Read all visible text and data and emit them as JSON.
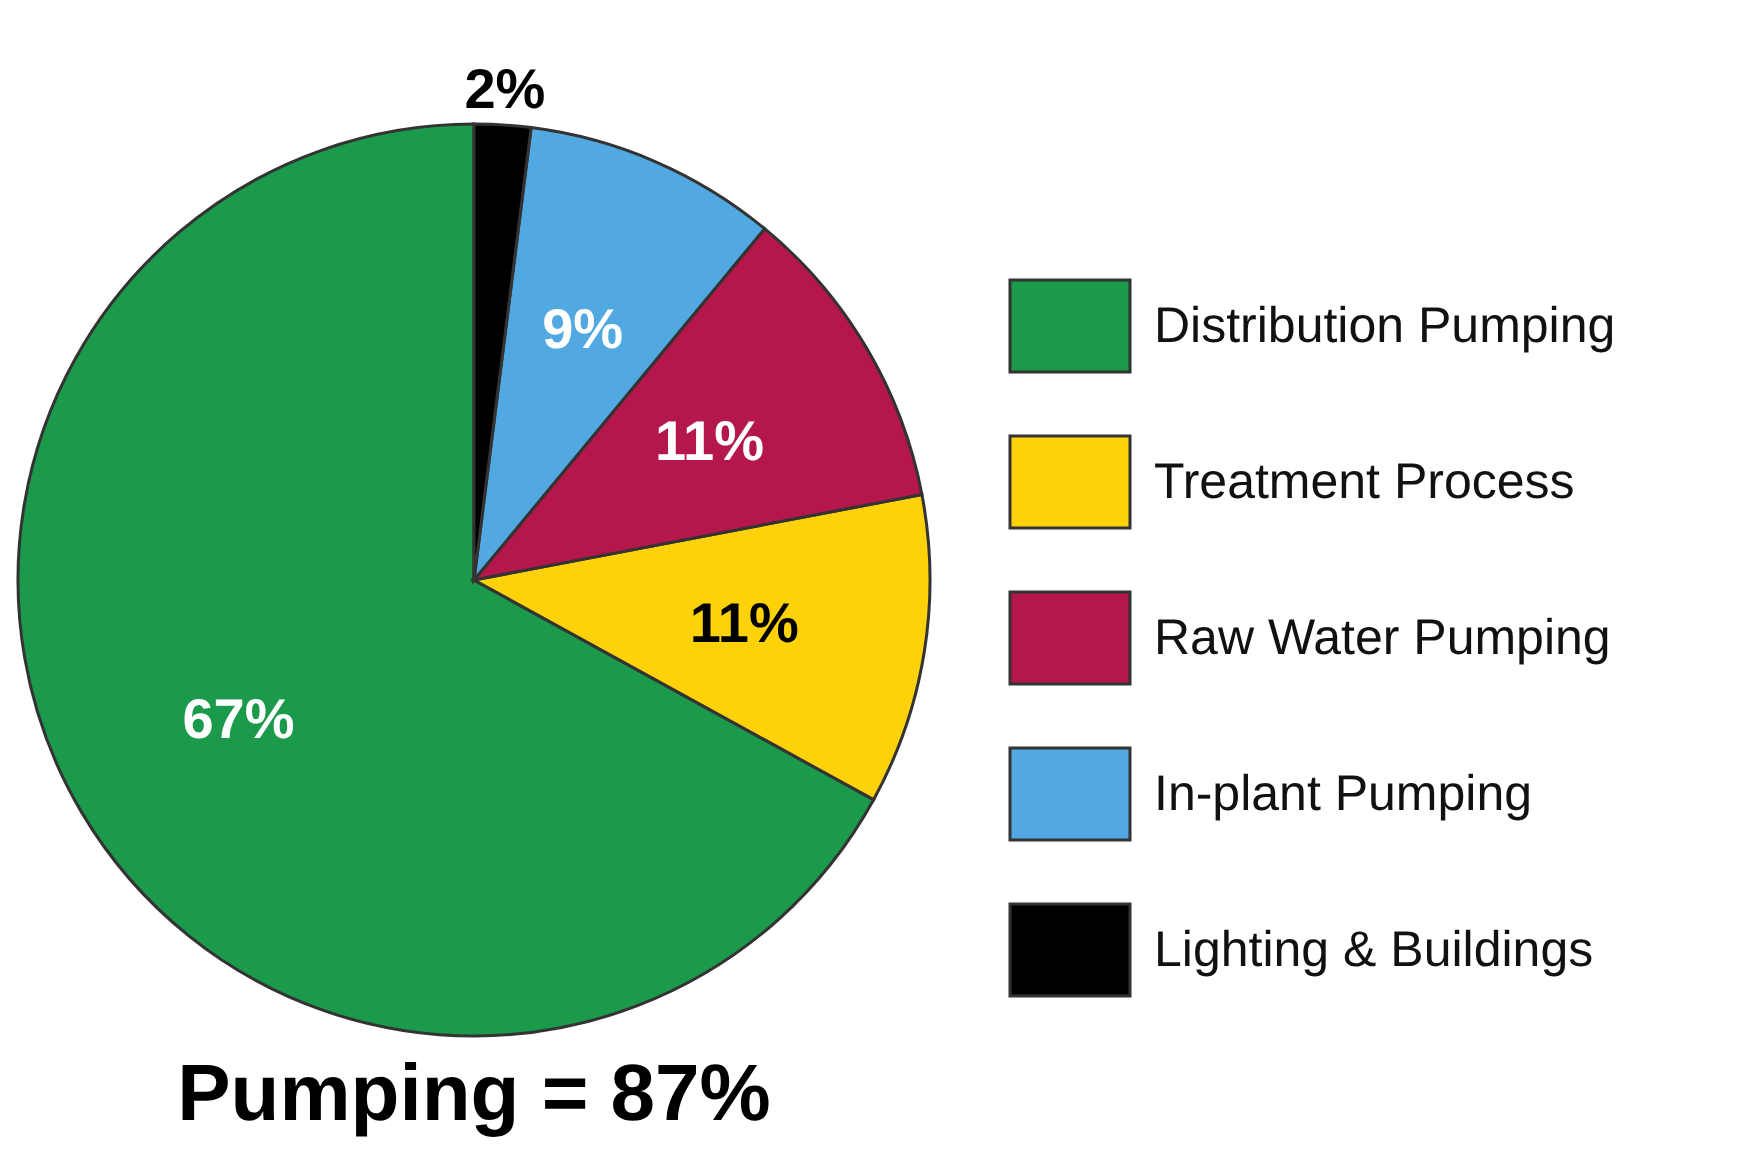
{
  "chart_data": {
    "type": "pie",
    "categories": [
      "Distribution Pumping",
      "Treatment Process",
      "Raw Water Pumping",
      "In-plant Pumping",
      "Lighting & Buildings"
    ],
    "values": [
      67,
      11,
      11,
      9,
      2
    ],
    "colors": [
      "#1a9a4a",
      "#fdd20a",
      "#b5174a",
      "#52a8e0",
      "#000000"
    ],
    "value_labels": [
      "67%",
      "11%",
      "11%",
      "9%",
      "2%"
    ],
    "legend": "right",
    "annotations": [
      "Pumping = 87%"
    ]
  }
}
